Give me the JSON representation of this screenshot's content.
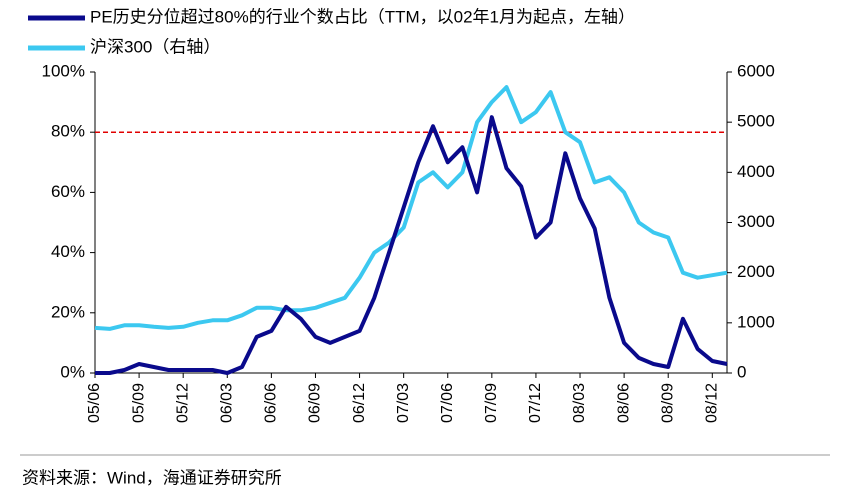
{
  "chart_data": {
    "type": "line",
    "categories": [
      "05/06",
      null,
      null,
      "05/09",
      null,
      null,
      "05/12",
      null,
      null,
      "06/03",
      null,
      null,
      "06/06",
      null,
      null,
      "06/09",
      null,
      null,
      "06/12",
      null,
      null,
      "07/03",
      null,
      null,
      "07/06",
      null,
      null,
      "07/09",
      null,
      null,
      "07/12",
      null,
      null,
      "08/03",
      null,
      null,
      "08/06",
      null,
      null,
      "08/09",
      null,
      null,
      "08/12",
      null
    ],
    "series": [
      {
        "name": "PE历史分位超过80%的行业个数占比（TTM，以02年1月为起点，左轴）",
        "color": "#0a0a8c",
        "axis": "y",
        "values": [
          0,
          0,
          1,
          3,
          2,
          1,
          1,
          1,
          1,
          0,
          2,
          12,
          14,
          22,
          18,
          12,
          10,
          12,
          14,
          25,
          40,
          55,
          70,
          82,
          70,
          75,
          60,
          85,
          68,
          62,
          45,
          50,
          73,
          58,
          48,
          25,
          10,
          5,
          3,
          2,
          18,
          8,
          4,
          3
        ]
      },
      {
        "name": "沪深300（右轴）",
        "color": "#3cc8f0",
        "axis": "y2",
        "values": [
          900,
          880,
          950,
          950,
          920,
          900,
          920,
          1000,
          1050,
          1050,
          1150,
          1300,
          1300,
          1250,
          1250,
          1300,
          1400,
          1500,
          1900,
          2400,
          2600,
          2900,
          3800,
          4000,
          3700,
          4000,
          5000,
          5400,
          5700,
          5000,
          5200,
          5600,
          4800,
          4600,
          3800,
          3900,
          3600,
          3000,
          2800,
          2700,
          2000,
          1900,
          1950,
          2000
        ]
      }
    ],
    "ylim": [
      0,
      100
    ],
    "yticks": [
      {
        "value": 0,
        "label": "0%"
      },
      {
        "value": 20,
        "label": "20%"
      },
      {
        "value": 40,
        "label": "40%"
      },
      {
        "value": 60,
        "label": "60%"
      },
      {
        "value": 80,
        "label": "80%"
      },
      {
        "value": 100,
        "label": "100%"
      }
    ],
    "y2lim": [
      0,
      6000
    ],
    "y2ticks": [
      0,
      1000,
      2000,
      3000,
      4000,
      5000,
      6000
    ],
    "reference_line": {
      "value": 80,
      "color": "#e00000"
    },
    "legend": "top-left",
    "source": "资料来源：Wind，海通证券研究所"
  }
}
